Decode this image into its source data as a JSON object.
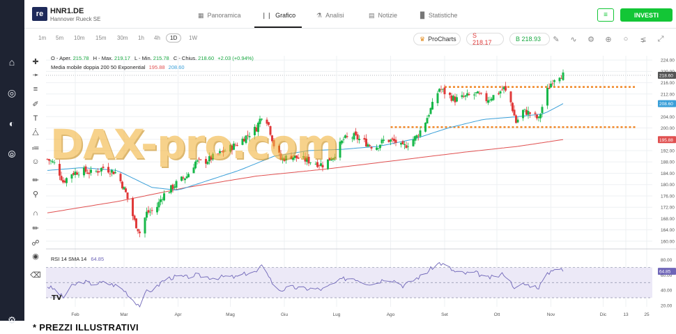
{
  "header": {
    "logo_text": "re",
    "ticker": "HNR1.DE",
    "company": "Hannover Rueck SE",
    "tabs": [
      {
        "label": "Panoramica",
        "icon": "grid-icon"
      },
      {
        "label": "Grafico",
        "icon": "candlestick-icon",
        "active": true
      },
      {
        "label": "Analisi",
        "icon": "flask-icon"
      },
      {
        "label": "Notizie",
        "icon": "newspaper-icon"
      },
      {
        "label": "Statistiche",
        "icon": "bar-chart-icon"
      }
    ],
    "invest_label": "INVESTI"
  },
  "toolbar": {
    "timeframes": [
      "1m",
      "5m",
      "10m",
      "15m",
      "30m",
      "1h",
      "4h",
      "1D",
      "1W"
    ],
    "active_timeframe": "1D",
    "procharts_label": "ProCharts",
    "sell_label": "S 218.17",
    "buy_label": "B 218.93"
  },
  "colors": {
    "up": "#18b84a",
    "down": "#e03a3a",
    "ma200": "#e05050",
    "ma50": "#3a9fd8",
    "rsi": "#6f66b8",
    "rsi_band": "#ece9f7",
    "level": "#f0831e",
    "invest": "#13c636"
  },
  "chart_data": [
    {
      "type": "candlestick",
      "ohlc_legend": {
        "o_label": "O - Aper.",
        "o": "215.78",
        "h_label": "H - Max.",
        "h": "219.17",
        "l_label": "L - Min.",
        "l": "215.78",
        "c_label": "C - Chius.",
        "c": "218.60",
        "change": "+2.03 (+0.94%)"
      },
      "ma_legend": {
        "label": "Media mobile doppia 200 50 Exponential",
        "ma200": "195.88",
        "ma50": "208.60"
      },
      "x_ticks": [
        "Feb",
        "Mar",
        "Apr",
        "Mag",
        "Giu",
        "Lug",
        "Ago",
        "Set",
        "Ott",
        "Nov",
        "Dic",
        "13",
        "25"
      ],
      "x_tick_days": [
        16,
        44,
        75,
        105,
        136,
        166,
        197,
        228,
        258,
        289,
        319,
        332,
        344
      ],
      "y_ticks": [
        160,
        164,
        168,
        172,
        176,
        180,
        184,
        188,
        192,
        196,
        200,
        204,
        208,
        212,
        216,
        220,
        224
      ],
      "ylim": [
        158.5,
        225.5
      ],
      "axis_badges": {
        "last": "218.60",
        "ma50": "208.60",
        "ma200": "195.88"
      },
      "horizontal_levels": [
        {
          "value": 214.5,
          "from_day": 228,
          "to_day": 338
        },
        {
          "value": 200.3,
          "from_day": 197,
          "to_day": 338
        }
      ],
      "price_anchors": [
        [
          0,
          189
        ],
        [
          5,
          187
        ],
        [
          9,
          181
        ],
        [
          14,
          184
        ],
        [
          20,
          185
        ],
        [
          26,
          184
        ],
        [
          32,
          186
        ],
        [
          40,
          184
        ],
        [
          45,
          177
        ],
        [
          50,
          167
        ],
        [
          53,
          163
        ],
        [
          57,
          170
        ],
        [
          62,
          171
        ],
        [
          66,
          176
        ],
        [
          70,
          178
        ],
        [
          75,
          181
        ],
        [
          80,
          183
        ],
        [
          85,
          188
        ],
        [
          90,
          188
        ],
        [
          96,
          190
        ],
        [
          102,
          192
        ],
        [
          108,
          194
        ],
        [
          114,
          197
        ],
        [
          120,
          200
        ],
        [
          124,
          206
        ],
        [
          127,
          201
        ],
        [
          130,
          194
        ],
        [
          134,
          189
        ],
        [
          140,
          190
        ],
        [
          146,
          189
        ],
        [
          152,
          188
        ],
        [
          158,
          187
        ],
        [
          164,
          190
        ],
        [
          170,
          196
        ],
        [
          176,
          197
        ],
        [
          182,
          195
        ],
        [
          188,
          193
        ],
        [
          194,
          196
        ],
        [
          200,
          195
        ],
        [
          204,
          193
        ],
        [
          208,
          195
        ],
        [
          212,
          197
        ],
        [
          216,
          201
        ],
        [
          221,
          208
        ],
        [
          225,
          214
        ],
        [
          229,
          212
        ],
        [
          234,
          210
        ],
        [
          240,
          211
        ],
        [
          246,
          212
        ],
        [
          252,
          210
        ],
        [
          258,
          212
        ],
        [
          262,
          214
        ],
        [
          266,
          209
        ],
        [
          269,
          202
        ],
        [
          273,
          206
        ],
        [
          278,
          205
        ],
        [
          282,
          203
        ],
        [
          286,
          212
        ],
        [
          290,
          217
        ],
        [
          293,
          219
        ],
        [
          296,
          218.6
        ]
      ],
      "ma200_anchors": [
        [
          0,
          170
        ],
        [
          40,
          174
        ],
        [
          80,
          179
        ],
        [
          120,
          183
        ],
        [
          160,
          185.5
        ],
        [
          200,
          188.5
        ],
        [
          240,
          191.5
        ],
        [
          270,
          193.5
        ],
        [
          296,
          195.9
        ]
      ],
      "ma50_anchors": [
        [
          0,
          185
        ],
        [
          20,
          186
        ],
        [
          40,
          185
        ],
        [
          60,
          179
        ],
        [
          75,
          178
        ],
        [
          90,
          181
        ],
        [
          110,
          185
        ],
        [
          130,
          190
        ],
        [
          150,
          192
        ],
        [
          170,
          192.5
        ],
        [
          190,
          193.5
        ],
        [
          210,
          196
        ],
        [
          230,
          200
        ],
        [
          250,
          203
        ],
        [
          270,
          204
        ],
        [
          285,
          205
        ],
        [
          296,
          208.6
        ]
      ]
    },
    {
      "type": "line",
      "name": "RSI 14 SMA 14",
      "legend_label": "RSI 14 SMA 14",
      "value_label": "64.85",
      "y_ticks": [
        20.0,
        40.0,
        60.0,
        80.0
      ],
      "ylim": [
        18,
        88
      ],
      "band": [
        30,
        70
      ],
      "mid": 50,
      "badge": "64.85",
      "rsi_anchors": [
        [
          0,
          45
        ],
        [
          5,
          40
        ],
        [
          9,
          30
        ],
        [
          14,
          45
        ],
        [
          20,
          52
        ],
        [
          26,
          48
        ],
        [
          32,
          50
        ],
        [
          40,
          46
        ],
        [
          45,
          38
        ],
        [
          50,
          25
        ],
        [
          53,
          20
        ],
        [
          57,
          38
        ],
        [
          62,
          42
        ],
        [
          66,
          52
        ],
        [
          70,
          56
        ],
        [
          75,
          58
        ],
        [
          80,
          57
        ],
        [
          85,
          60
        ],
        [
          90,
          58
        ],
        [
          96,
          56
        ],
        [
          102,
          58
        ],
        [
          108,
          57
        ],
        [
          114,
          62
        ],
        [
          120,
          64
        ],
        [
          124,
          74
        ],
        [
          127,
          60
        ],
        [
          130,
          45
        ],
        [
          134,
          40
        ],
        [
          140,
          44
        ],
        [
          146,
          42
        ],
        [
          152,
          42
        ],
        [
          158,
          41
        ],
        [
          164,
          48
        ],
        [
          170,
          55
        ],
        [
          176,
          56
        ],
        [
          182,
          50
        ],
        [
          188,
          48
        ],
        [
          194,
          56
        ],
        [
          200,
          52
        ],
        [
          204,
          46
        ],
        [
          208,
          50
        ],
        [
          212,
          56
        ],
        [
          216,
          60
        ],
        [
          221,
          70
        ],
        [
          225,
          76
        ],
        [
          229,
          72
        ],
        [
          234,
          64
        ],
        [
          240,
          62
        ],
        [
          246,
          63
        ],
        [
          252,
          56
        ],
        [
          258,
          58
        ],
        [
          262,
          62
        ],
        [
          266,
          50
        ],
        [
          269,
          42
        ],
        [
          273,
          48
        ],
        [
          278,
          46
        ],
        [
          282,
          44
        ],
        [
          286,
          58
        ],
        [
          290,
          68
        ],
        [
          293,
          70
        ],
        [
          296,
          64.85
        ]
      ]
    }
  ],
  "footer_note": "* PREZZI ILLUSTRATIVI",
  "watermark": "DAX-pro.com"
}
